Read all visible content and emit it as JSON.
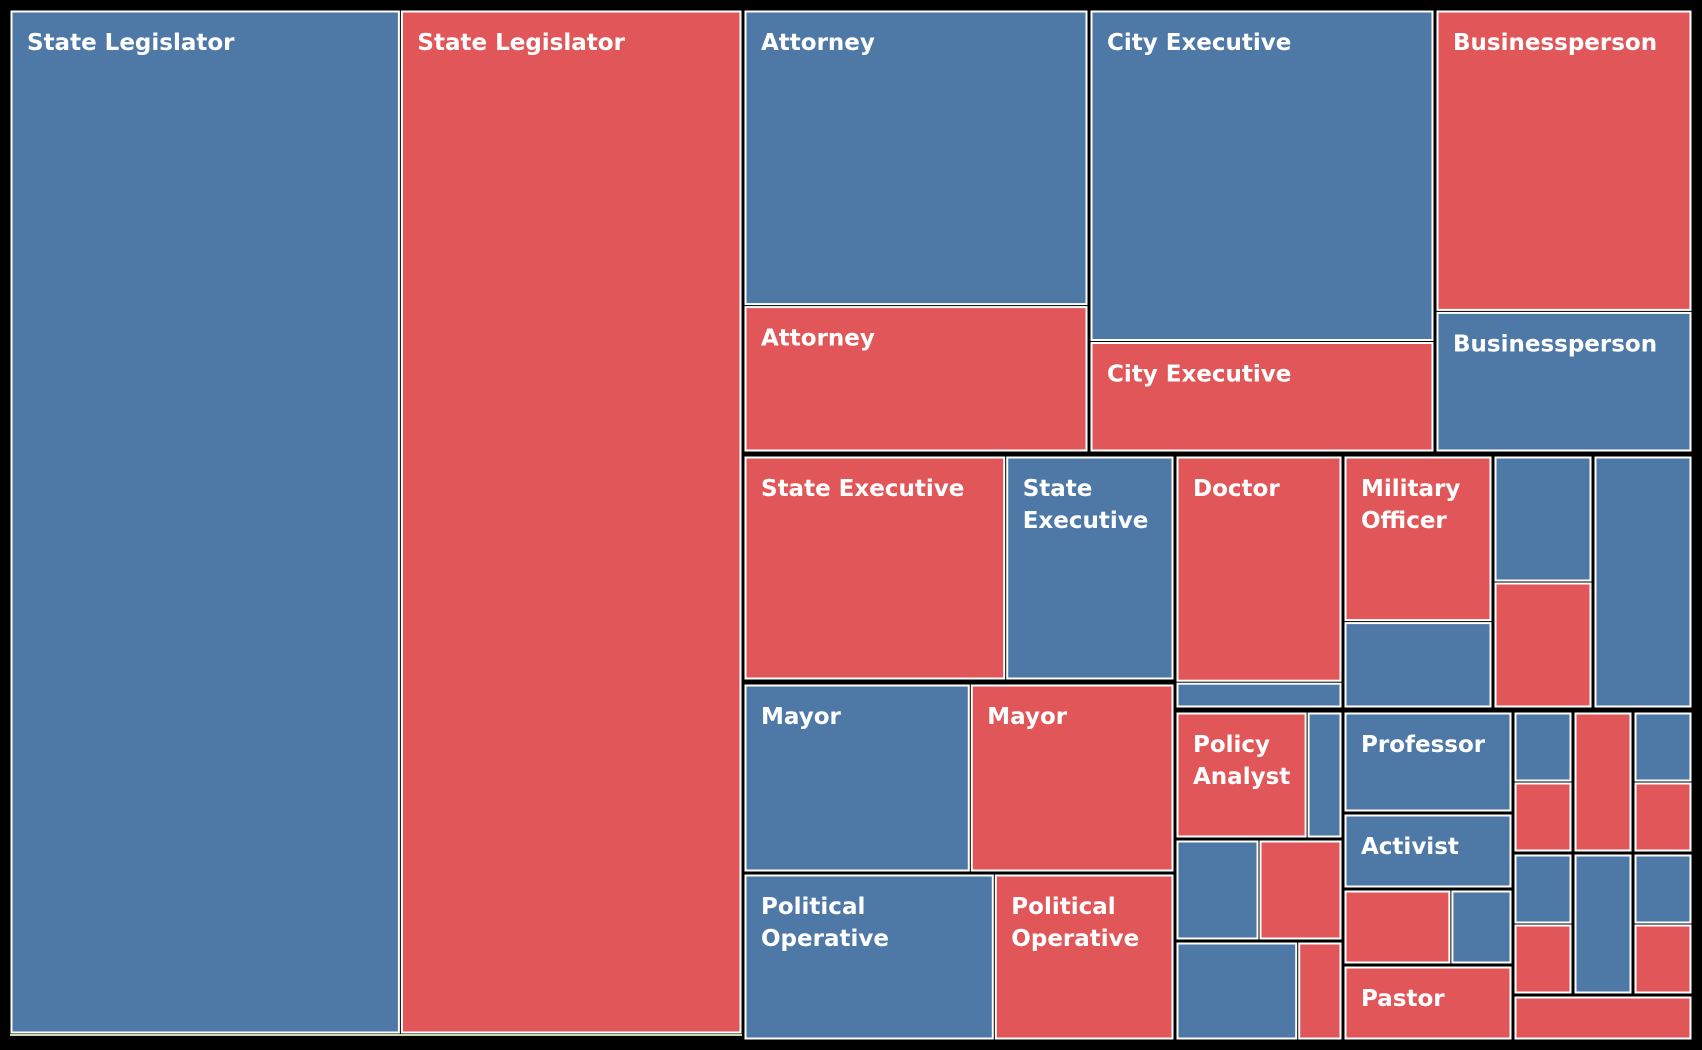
{
  "chart_data": {
    "type": "treemap",
    "colors": {
      "blue": "#4e79a7",
      "red": "#e15759"
    },
    "groups": [
      {
        "name": "State Legislator",
        "items": [
          {
            "label": "State Legislator",
            "color": "blue",
            "value": 3360
          },
          {
            "label": "State Legislator",
            "color": "red",
            "value": 2940
          }
        ]
      },
      {
        "name": "Attorney",
        "items": [
          {
            "label": "Attorney",
            "color": "blue",
            "value": 1010
          },
          {
            "label": "Attorney",
            "color": "red",
            "value": 500
          }
        ]
      },
      {
        "name": "City Executive",
        "items": [
          {
            "label": "City Executive",
            "color": "blue",
            "value": 1140
          },
          {
            "label": "City Executive",
            "color": "red",
            "value": 380
          }
        ]
      },
      {
        "name": "Businessperson",
        "items": [
          {
            "label": "Businessperson",
            "color": "red",
            "value": 750
          },
          {
            "label": "Businessperson",
            "color": "blue",
            "value": 350
          }
        ]
      },
      {
        "name": "State Executive",
        "items": [
          {
            "label": "State Executive",
            "color": "red",
            "value": 560
          },
          {
            "label": "State Executive",
            "color": "blue",
            "value": 360
          }
        ]
      },
      {
        "name": "Doctor",
        "items": [
          {
            "label": "Doctor",
            "color": "red",
            "value": 350
          },
          {
            "label": "",
            "color": "blue",
            "value": 40
          }
        ]
      },
      {
        "name": "Military Officer",
        "items": [
          {
            "label": "Military Officer",
            "color": "red",
            "value": 230
          },
          {
            "label": "",
            "color": "blue",
            "value": 120
          }
        ]
      },
      {
        "name": "",
        "items": [
          {
            "label": "",
            "color": "blue",
            "value": 130
          },
          {
            "label": "",
            "color": "red",
            "value": 130
          }
        ]
      },
      {
        "name": "",
        "items": [
          {
            "label": "",
            "color": "blue",
            "value": 220
          }
        ]
      },
      {
        "name": "Mayor",
        "items": [
          {
            "label": "Mayor",
            "color": "blue",
            "value": 400
          },
          {
            "label": "Mayor",
            "color": "red",
            "value": 360
          }
        ]
      },
      {
        "name": "Political Operative",
        "items": [
          {
            "label": "Political Operative",
            "color": "blue",
            "value": 390
          },
          {
            "label": "Political Operative",
            "color": "red",
            "value": 280
          }
        ]
      },
      {
        "name": "Policy Analyst",
        "items": [
          {
            "label": "Policy Analyst",
            "color": "red",
            "value": 150
          },
          {
            "label": "",
            "color": "blue",
            "value": 40
          }
        ]
      },
      {
        "name": "",
        "items": [
          {
            "label": "",
            "color": "blue",
            "value": 80
          },
          {
            "label": "",
            "color": "red",
            "value": 80
          }
        ]
      },
      {
        "name": "",
        "items": [
          {
            "label": "",
            "color": "blue",
            "value": 110
          },
          {
            "label": "",
            "color": "red",
            "value": 40
          }
        ]
      },
      {
        "name": "Professor",
        "items": [
          {
            "label": "Professor",
            "color": "blue",
            "value": 150
          }
        ]
      },
      {
        "name": "Activist",
        "items": [
          {
            "label": "Activist",
            "color": "blue",
            "value": 110
          }
        ]
      },
      {
        "name": "",
        "items": [
          {
            "label": "",
            "color": "red",
            "value": 70
          },
          {
            "label": "",
            "color": "blue",
            "value": 40
          }
        ]
      },
      {
        "name": "Pastor",
        "items": [
          {
            "label": "Pastor",
            "color": "red",
            "value": 120
          }
        ]
      },
      {
        "name": "",
        "items": [
          {
            "label": "",
            "color": "blue",
            "value": 40
          },
          {
            "label": "",
            "color": "red",
            "value": 40
          }
        ]
      },
      {
        "name": "",
        "items": [
          {
            "label": "",
            "color": "red",
            "value": 70
          }
        ]
      },
      {
        "name": "",
        "items": [
          {
            "label": "",
            "color": "blue",
            "value": 40
          },
          {
            "label": "",
            "color": "red",
            "value": 40
          }
        ]
      },
      {
        "name": "",
        "items": [
          {
            "label": "",
            "color": "blue",
            "value": 40
          },
          {
            "label": "",
            "color": "red",
            "value": 40
          }
        ]
      },
      {
        "name": "",
        "items": [
          {
            "label": "",
            "color": "blue",
            "value": 70
          }
        ]
      },
      {
        "name": "",
        "items": [
          {
            "label": "",
            "color": "blue",
            "value": 40
          },
          {
            "label": "",
            "color": "red",
            "value": 40
          }
        ]
      },
      {
        "name": "",
        "items": [
          {
            "label": "",
            "color": "red",
            "value": 30
          }
        ]
      }
    ]
  }
}
